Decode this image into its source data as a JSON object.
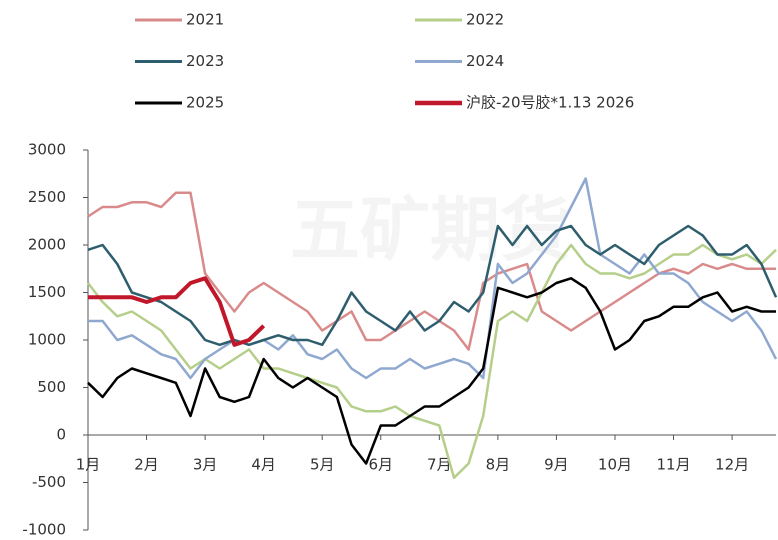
{
  "chart_data": {
    "type": "line",
    "watermark": "五矿期货",
    "categories": [
      "1月",
      null,
      null,
      null,
      "2月",
      null,
      null,
      null,
      "3月",
      null,
      null,
      null,
      "4月",
      null,
      null,
      null,
      "5月",
      null,
      null,
      null,
      "6月",
      null,
      null,
      null,
      "7月",
      null,
      null,
      null,
      "8月",
      null,
      null,
      null,
      "9月",
      null,
      null,
      null,
      "10月",
      null,
      null,
      null,
      "11月",
      null,
      null,
      null,
      "12月",
      null,
      null,
      null
    ],
    "ylim": [
      -1000,
      3000
    ],
    "yticks": [
      -1000,
      -500,
      0,
      500,
      1000,
      1500,
      2000,
      2500,
      3000
    ],
    "grid": false,
    "legend": "top",
    "series": [
      {
        "name": "2021",
        "color": "#d98b8b",
        "width": 2.5,
        "values": [
          2300,
          2400,
          2400,
          2450,
          2450,
          2400,
          2550,
          2550,
          1700,
          1500,
          1300,
          1500,
          1600,
          1500,
          1400,
          1300,
          1100,
          1200,
          1300,
          1000,
          1000,
          1100,
          1200,
          1300,
          1200,
          1100,
          900,
          1600,
          1700,
          1750,
          1800,
          1300,
          1200,
          1100,
          1200,
          1300,
          1400,
          1500,
          1600,
          1700,
          1750,
          1700,
          1800,
          1750,
          1800,
          1750,
          1750,
          1750
        ]
      },
      {
        "name": "2022",
        "color": "#b5cf8a",
        "width": 2.5,
        "values": [
          1600,
          1400,
          1250,
          1300,
          1200,
          1100,
          900,
          700,
          800,
          700,
          800,
          900,
          700,
          700,
          650,
          600,
          550,
          500,
          300,
          250,
          250,
          300,
          200,
          150,
          100,
          -450,
          -300,
          200,
          1200,
          1300,
          1200,
          1500,
          1800,
          2000,
          1800,
          1700,
          1700,
          1650,
          1700,
          1800,
          1900,
          1900,
          2000,
          1900,
          1850,
          1900,
          1800,
          1950
        ]
      },
      {
        "name": "2023",
        "color": "#2e5e6e",
        "width": 2.5,
        "values": [
          1950,
          2000,
          1800,
          1500,
          1450,
          1400,
          1300,
          1200,
          1000,
          950,
          1000,
          950,
          1000,
          1050,
          1000,
          1000,
          950,
          1200,
          1500,
          1300,
          1200,
          1100,
          1300,
          1100,
          1200,
          1400,
          1300,
          1500,
          2200,
          2000,
          2200,
          2000,
          2150,
          2200,
          2000,
          1900,
          2000,
          1900,
          1800,
          2000,
          2100,
          2200,
          2100,
          1900,
          1900,
          2000,
          1800,
          1450
        ]
      },
      {
        "name": "2024",
        "color": "#8fa8d0",
        "width": 2.5,
        "values": [
          1200,
          1200,
          1000,
          1050,
          950,
          850,
          800,
          600,
          800,
          900,
          1000,
          950,
          1000,
          900,
          1050,
          850,
          800,
          900,
          700,
          600,
          700,
          700,
          800,
          700,
          750,
          800,
          750,
          600,
          1800,
          1600,
          1700,
          1900,
          2100,
          2400,
          2700,
          1900,
          1800,
          1700,
          1900,
          1700,
          1700,
          1600,
          1400,
          1300,
          1200,
          1300,
          1100,
          800
        ]
      },
      {
        "name": "2025",
        "color": "#000000",
        "width": 2.5,
        "values": [
          550,
          400,
          600,
          700,
          650,
          600,
          550,
          200,
          700,
          400,
          350,
          400,
          800,
          600,
          500,
          600,
          500,
          400,
          -100,
          -300,
          100,
          100,
          200,
          300,
          300,
          400,
          500,
          700,
          1550,
          1500,
          1450,
          1500,
          1600,
          1650,
          1550,
          1300,
          900,
          1000,
          1200,
          1250,
          1350,
          1350,
          1450,
          1500,
          1300,
          1350,
          1300,
          1300
        ]
      },
      {
        "name": "沪胶-20号胶*1.13  2026",
        "color": "#c0172b",
        "width": 4,
        "values": [
          1450,
          1450,
          1450,
          1450,
          1400,
          1450,
          1450,
          1600,
          1650,
          1400,
          950,
          1000,
          1150,
          null,
          null,
          null,
          null,
          null,
          null,
          null,
          null,
          null,
          null,
          null,
          null,
          null,
          null,
          null,
          null,
          null,
          null,
          null,
          null,
          null,
          null,
          null,
          null,
          null,
          null,
          null,
          null,
          null,
          null,
          null,
          null,
          null,
          null,
          null
        ]
      }
    ]
  }
}
